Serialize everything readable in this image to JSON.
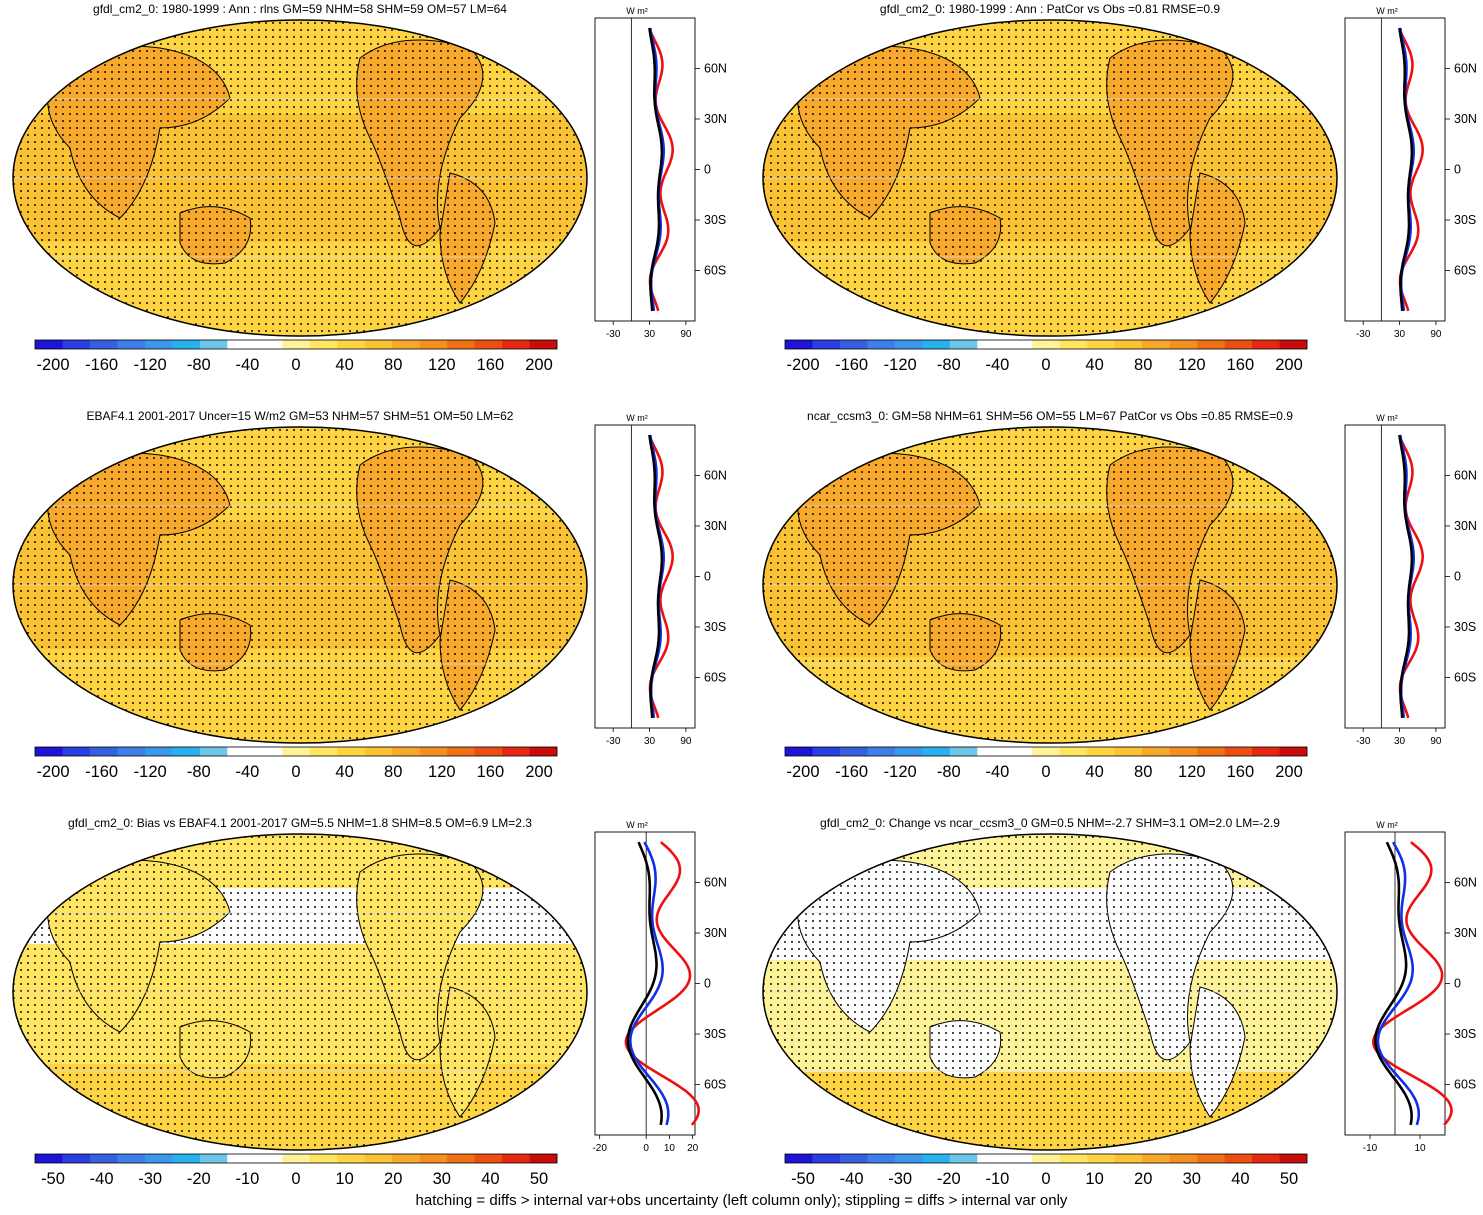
{
  "footer": "hatching = diffs > internal var+obs uncertainty (left column only); stippling = diffs > internal var only",
  "profile_unit": "W m²",
  "lat_ticks": [
    "60N",
    "30N",
    "0",
    "30S",
    "60S"
  ],
  "palettes": {
    "diverging": [
      "#2013d8",
      "#2a3fe0",
      "#3560e0",
      "#3e7ee8",
      "#3a98ec",
      "#29b0ee",
      "#6dc6ea",
      "#ffffff",
      "#ffffff",
      "#fff399",
      "#ffe561",
      "#fed442",
      "#fbc233",
      "#f8a82a",
      "#f58f20",
      "#f07016",
      "#eb4f11",
      "#e62810",
      "#c90d0d"
    ],
    "line_colors": {
      "black": "#000000",
      "red": "#ee1010",
      "blue": "#1030e8"
    }
  },
  "panels": [
    {
      "id": "p1",
      "title": "gfdl_cm2_0: 1980-1999 : Ann : rlns GM=59 NHM=58 SHM=59 OM=57 LM=64",
      "colorbar_labels": [
        "-200",
        "-160",
        "-120",
        "-80",
        "-40",
        "0",
        "40",
        "80",
        "120",
        "160",
        "200"
      ],
      "profile_xticks": [
        "-30",
        "30",
        "90"
      ],
      "profile_ref": 0,
      "profile_xrange": [
        -60,
        105
      ],
      "field": {
        "base": 52,
        "amp": 12,
        "land": 22,
        "hot": 55
      }
    },
    {
      "id": "p2",
      "title": "gfdl_cm2_0: 1980-1999 : Ann : PatCor vs Obs =0.81 RMSE=0.9",
      "colorbar_labels": [
        "-200",
        "-160",
        "-120",
        "-80",
        "-40",
        "0",
        "40",
        "80",
        "120",
        "160",
        "200"
      ],
      "profile_xticks": [
        "-30",
        "30",
        "90"
      ],
      "profile_ref": 0,
      "profile_xrange": [
        -60,
        105
      ],
      "field": {
        "base": 54,
        "amp": 12,
        "land": 20,
        "hot": 55
      }
    },
    {
      "id": "p3",
      "title": "EBAF4.1 2001-2017 Uncer=15 W/m2 GM=53 NHM=57 SHM=51 OM=50 LM=62",
      "colorbar_labels": [
        "-200",
        "-160",
        "-120",
        "-80",
        "-40",
        "0",
        "40",
        "80",
        "120",
        "160",
        "200"
      ],
      "profile_xticks": [
        "-30",
        "30",
        "90"
      ],
      "profile_ref": 0,
      "profile_xrange": [
        -60,
        105
      ],
      "field": {
        "base": 50,
        "amp": 12,
        "land": 22,
        "hot": 55
      }
    },
    {
      "id": "p4",
      "title": "ncar_ccsm3_0: GM=58 NHM=61 SHM=56 OM=55 LM=67 PatCor vs Obs =0.85 RMSE=0.9",
      "colorbar_labels": [
        "-200",
        "-160",
        "-120",
        "-80",
        "-40",
        "0",
        "40",
        "80",
        "120",
        "160",
        "200"
      ],
      "profile_xticks": [
        "-30",
        "30",
        "90"
      ],
      "profile_ref": 0,
      "profile_xrange": [
        -60,
        105
      ],
      "field": {
        "base": 55,
        "amp": 12,
        "land": 22,
        "hot": 55
      }
    },
    {
      "id": "p5",
      "title": "gfdl_cm2_0: Bias vs EBAF4.1 2001-2017 GM=5.5 NHM=1.8 SHM=8.5 OM=6.9 LM=2.3",
      "colorbar_labels": [
        "-50",
        "-40",
        "-30",
        "-20",
        "-10",
        "0",
        "10",
        "20",
        "30",
        "40",
        "50"
      ],
      "profile_xticks": [
        "-20",
        "0",
        "10",
        "20"
      ],
      "profile_ref": 0,
      "profile_xrange": [
        -22,
        21
      ],
      "field": {
        "base": 3,
        "amp": 9,
        "land": 6,
        "hot": 0
      }
    },
    {
      "id": "p6",
      "title": "gfdl_cm2_0: Change vs ncar_ccsm3_0 GM=0.5 NHM=-2.7 SHM=3.1 OM=2.0 LM=-2.9",
      "colorbar_labels": [
        "-50",
        "-40",
        "-30",
        "-20",
        "-10",
        "0",
        "10",
        "20",
        "30",
        "40",
        "50"
      ],
      "profile_xticks": [
        "-10",
        "10"
      ],
      "profile_ref": 0,
      "profile_xrange": [
        -20,
        20
      ],
      "field": {
        "base": 0,
        "amp": 9,
        "land": -4,
        "hot": 0
      }
    }
  ]
}
